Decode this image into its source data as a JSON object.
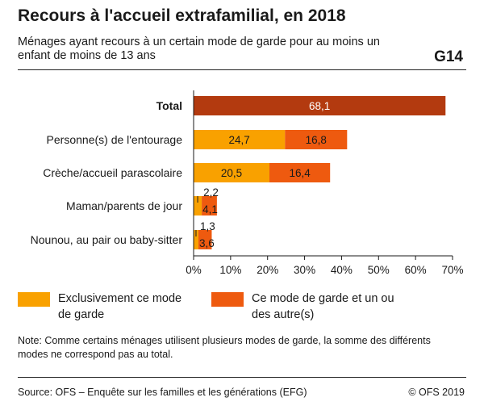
{
  "header": {
    "title": "Recours à l'accueil extrafamilial, en 2018",
    "subtitle": "Ménages ayant recours à un certain mode de garde pour au moins un enfant de moins de 13 ans",
    "figure_id": "G14"
  },
  "colors": {
    "total": "#B33A0F",
    "exclusive": "#F9A100",
    "combined": "#EE5A0F"
  },
  "chart_data": {
    "type": "bar",
    "orientation": "horizontal",
    "stacked": true,
    "categories": [
      "Total",
      "Personne(s) de l'entourage",
      "Crèche/accueil parascolaire",
      "Maman/parents de jour",
      "Nounou, au pair ou baby-sitter"
    ],
    "total_value": 68.1,
    "total_label": "68,1",
    "series": [
      {
        "name": "Exclusivement ce mode de garde",
        "values": [
          null,
          24.7,
          20.5,
          2.2,
          1.3
        ],
        "labels": [
          "",
          "24,7",
          "20,5",
          "2,2",
          "1,3"
        ]
      },
      {
        "name": "Ce mode de garde et un ou des autre(s)",
        "values": [
          null,
          16.8,
          16.4,
          4.1,
          3.6
        ],
        "labels": [
          "",
          "16,8",
          "16,4",
          "4,1",
          "3,6"
        ]
      }
    ],
    "xlim": [
      0,
      70
    ],
    "xticks": [
      0,
      10,
      20,
      30,
      40,
      50,
      60,
      70
    ],
    "xtick_labels": [
      "0%",
      "10%",
      "20%",
      "30%",
      "40%",
      "50%",
      "60%",
      "70%"
    ],
    "grid": false,
    "legend_position": "bottom"
  },
  "legend": {
    "exclusive_line1": "Exclusivement ce mode",
    "exclusive_line2": "de garde",
    "combined_line1": "Ce mode de garde et un ou",
    "combined_line2": "des autre(s)"
  },
  "note_line1": "Note: Comme certains ménages utilisent plusieurs modes de garde, la somme des différents",
  "note_line2": "modes ne correspond pas au total.",
  "source": "Source: OFS – Enquête sur les familles et les générations (EFG)",
  "copyright": "© OFS 2019"
}
